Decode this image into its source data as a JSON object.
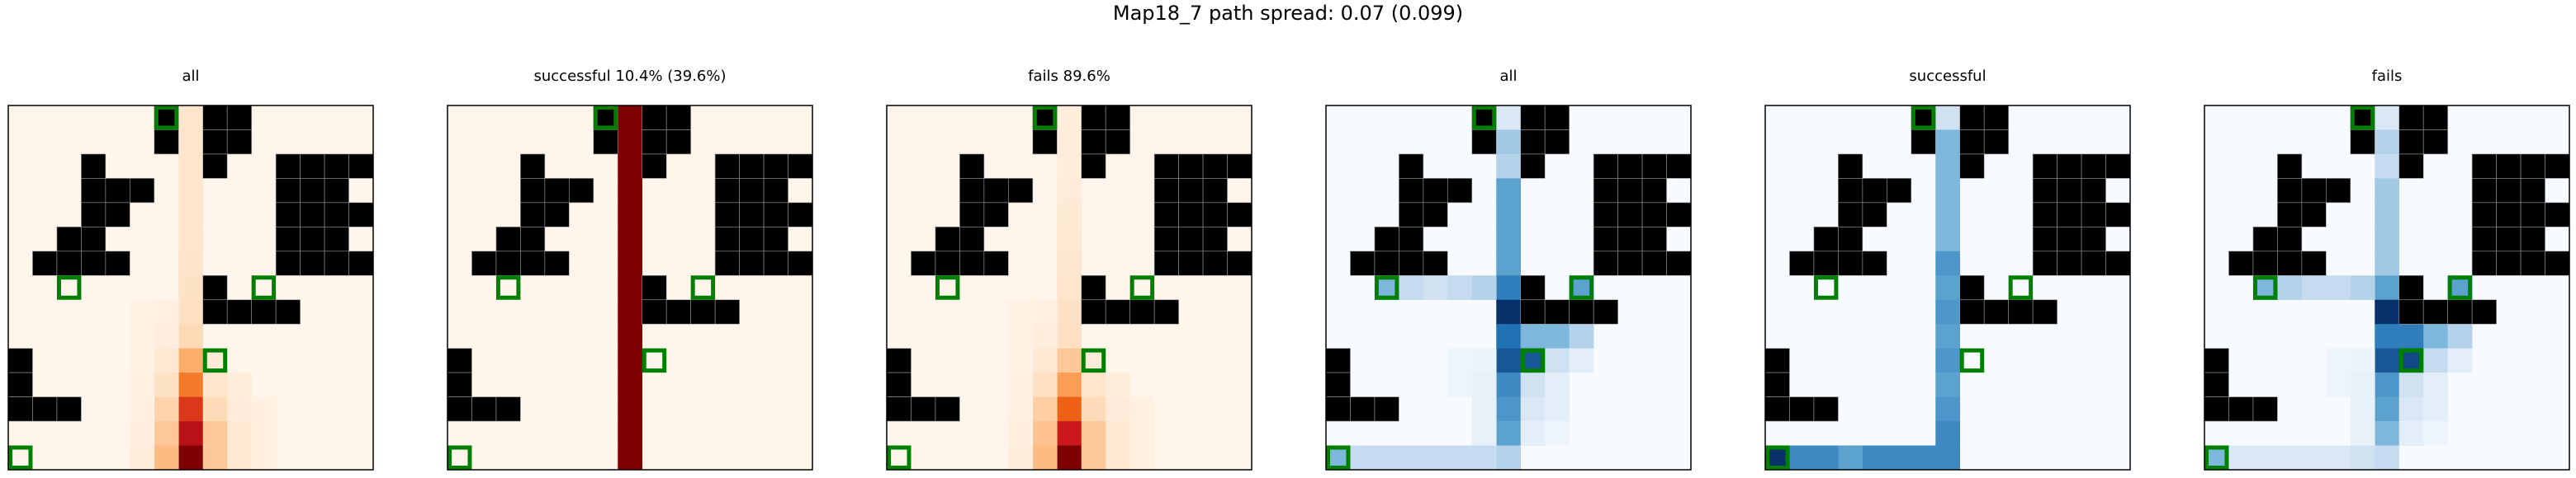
{
  "title": "Map18_7 path spread: 0.07 (0.099)",
  "chart_data": {
    "type": "heatmap",
    "grid_size": 15,
    "wall_color": "#000000",
    "marker_color": "#008000",
    "walls": [
      [
        0,
        6
      ],
      [
        0,
        8
      ],
      [
        0,
        9
      ],
      [
        1,
        6
      ],
      [
        1,
        8
      ],
      [
        1,
        9
      ],
      [
        2,
        3
      ],
      [
        2,
        8
      ],
      [
        2,
        11
      ],
      [
        2,
        12
      ],
      [
        2,
        13
      ],
      [
        2,
        14
      ],
      [
        3,
        3
      ],
      [
        3,
        4
      ],
      [
        3,
        5
      ],
      [
        3,
        11
      ],
      [
        3,
        12
      ],
      [
        3,
        13
      ],
      [
        4,
        3
      ],
      [
        4,
        4
      ],
      [
        4,
        11
      ],
      [
        4,
        12
      ],
      [
        4,
        13
      ],
      [
        4,
        14
      ],
      [
        5,
        2
      ],
      [
        5,
        3
      ],
      [
        5,
        11
      ],
      [
        5,
        12
      ],
      [
        5,
        13
      ],
      [
        6,
        1
      ],
      [
        6,
        2
      ],
      [
        6,
        3
      ],
      [
        6,
        4
      ],
      [
        6,
        11
      ],
      [
        6,
        12
      ],
      [
        6,
        13
      ],
      [
        6,
        14
      ],
      [
        7,
        8
      ],
      [
        8,
        8
      ],
      [
        8,
        9
      ],
      [
        8,
        10
      ],
      [
        8,
        11
      ],
      [
        10,
        0
      ],
      [
        11,
        0
      ],
      [
        12,
        0
      ],
      [
        12,
        1
      ],
      [
        12,
        2
      ]
    ],
    "markers": [
      [
        0,
        6
      ],
      [
        7,
        2
      ],
      [
        7,
        10
      ],
      [
        10,
        8
      ],
      [
        14,
        0
      ]
    ],
    "panels": [
      {
        "title": "all",
        "cmap": "orange",
        "cells": [
          [
            0,
            7,
            0.15
          ],
          [
            1,
            7,
            0.15
          ],
          [
            2,
            7,
            0.15
          ],
          [
            3,
            7,
            0.15
          ],
          [
            4,
            7,
            0.15
          ],
          [
            5,
            7,
            0.15
          ],
          [
            6,
            7,
            0.16
          ],
          [
            7,
            7,
            0.18
          ],
          [
            8,
            7,
            0.2
          ],
          [
            9,
            7,
            0.23
          ],
          [
            10,
            7,
            0.4
          ],
          [
            11,
            7,
            0.55
          ],
          [
            12,
            7,
            0.72
          ],
          [
            13,
            7,
            0.85
          ],
          [
            14,
            7,
            1.0
          ],
          [
            8,
            6,
            0.05
          ],
          [
            9,
            6,
            0.07
          ],
          [
            10,
            6,
            0.12
          ],
          [
            11,
            6,
            0.18
          ],
          [
            12,
            6,
            0.25
          ],
          [
            13,
            6,
            0.3
          ],
          [
            14,
            6,
            0.35
          ],
          [
            10,
            8,
            0.1
          ],
          [
            11,
            8,
            0.15
          ],
          [
            12,
            8,
            0.22
          ],
          [
            13,
            8,
            0.3
          ],
          [
            14,
            8,
            0.3
          ],
          [
            11,
            9,
            0.08
          ],
          [
            12,
            9,
            0.1
          ],
          [
            13,
            9,
            0.12
          ],
          [
            14,
            9,
            0.12
          ],
          [
            12,
            10,
            0.05
          ],
          [
            13,
            10,
            0.05
          ],
          [
            14,
            10,
            0.05
          ],
          [
            8,
            5,
            0.03
          ],
          [
            9,
            5,
            0.04
          ],
          [
            10,
            5,
            0.04
          ],
          [
            11,
            5,
            0.05
          ],
          [
            12,
            5,
            0.05
          ],
          [
            13,
            5,
            0.06
          ],
          [
            14,
            5,
            0.08
          ]
        ]
      },
      {
        "title": "successful 10.4% (39.6%)",
        "cmap": "orange",
        "cells": [
          [
            0,
            7,
            1.0
          ],
          [
            1,
            7,
            1.0
          ],
          [
            2,
            7,
            1.0
          ],
          [
            3,
            7,
            1.0
          ],
          [
            4,
            7,
            1.0
          ],
          [
            5,
            7,
            1.0
          ],
          [
            6,
            7,
            1.0
          ],
          [
            7,
            7,
            1.0
          ],
          [
            8,
            7,
            1.0
          ],
          [
            9,
            7,
            1.0
          ],
          [
            10,
            7,
            1.0
          ],
          [
            11,
            7,
            1.0
          ],
          [
            12,
            7,
            1.0
          ],
          [
            13,
            7,
            1.0
          ],
          [
            14,
            7,
            1.0
          ]
        ]
      },
      {
        "title": "fails 89.6%",
        "cmap": "orange",
        "cells": [
          [
            0,
            7,
            0.08
          ],
          [
            1,
            7,
            0.08
          ],
          [
            2,
            7,
            0.09
          ],
          [
            3,
            7,
            0.1
          ],
          [
            4,
            7,
            0.11
          ],
          [
            5,
            7,
            0.12
          ],
          [
            6,
            7,
            0.13
          ],
          [
            7,
            7,
            0.15
          ],
          [
            8,
            7,
            0.18
          ],
          [
            9,
            7,
            0.2
          ],
          [
            10,
            7,
            0.3
          ],
          [
            11,
            7,
            0.45
          ],
          [
            12,
            7,
            0.62
          ],
          [
            13,
            7,
            0.8
          ],
          [
            14,
            7,
            1.0
          ],
          [
            8,
            6,
            0.05
          ],
          [
            9,
            6,
            0.07
          ],
          [
            10,
            6,
            0.12
          ],
          [
            11,
            6,
            0.2
          ],
          [
            12,
            6,
            0.27
          ],
          [
            13,
            6,
            0.32
          ],
          [
            14,
            6,
            0.35
          ],
          [
            10,
            8,
            0.1
          ],
          [
            11,
            8,
            0.15
          ],
          [
            12,
            8,
            0.22
          ],
          [
            13,
            8,
            0.3
          ],
          [
            14,
            8,
            0.3
          ],
          [
            11,
            9,
            0.08
          ],
          [
            12,
            9,
            0.1
          ],
          [
            13,
            9,
            0.12
          ],
          [
            14,
            9,
            0.12
          ],
          [
            12,
            10,
            0.05
          ],
          [
            13,
            10,
            0.05
          ],
          [
            14,
            10,
            0.05
          ],
          [
            8,
            5,
            0.03
          ],
          [
            9,
            5,
            0.04
          ],
          [
            10,
            5,
            0.04
          ],
          [
            11,
            5,
            0.05
          ],
          [
            12,
            5,
            0.05
          ],
          [
            13,
            5,
            0.06
          ],
          [
            14,
            5,
            0.08
          ]
        ]
      },
      {
        "title": "all",
        "cmap": "blue",
        "cells": [
          [
            0,
            6,
            0.45
          ],
          [
            0,
            7,
            0.15
          ],
          [
            1,
            7,
            0.35
          ],
          [
            2,
            7,
            0.3
          ],
          [
            3,
            7,
            0.55
          ],
          [
            4,
            7,
            0.55
          ],
          [
            5,
            7,
            0.55
          ],
          [
            6,
            7,
            0.55
          ],
          [
            7,
            7,
            0.7
          ],
          [
            8,
            7,
            1.0
          ],
          [
            9,
            7,
            0.75
          ],
          [
            10,
            7,
            0.85
          ],
          [
            11,
            7,
            0.65
          ],
          [
            12,
            7,
            0.6
          ],
          [
            13,
            7,
            0.55
          ],
          [
            14,
            7,
            0.3
          ],
          [
            7,
            2,
            0.45
          ],
          [
            7,
            3,
            0.25
          ],
          [
            7,
            4,
            0.2
          ],
          [
            7,
            5,
            0.25
          ],
          [
            7,
            6,
            0.3
          ],
          [
            7,
            10,
            0.55
          ],
          [
            9,
            8,
            0.45
          ],
          [
            9,
            9,
            0.45
          ],
          [
            9,
            10,
            0.3
          ],
          [
            10,
            8,
            0.85
          ],
          [
            10,
            9,
            0.2
          ],
          [
            10,
            10,
            0.1
          ],
          [
            11,
            8,
            0.2
          ],
          [
            11,
            9,
            0.1
          ],
          [
            12,
            8,
            0.15
          ],
          [
            12,
            9,
            0.1
          ],
          [
            13,
            8,
            0.1
          ],
          [
            13,
            9,
            0.05
          ],
          [
            10,
            5,
            0.05
          ],
          [
            10,
            6,
            0.06
          ],
          [
            11,
            5,
            0.05
          ],
          [
            11,
            6,
            0.08
          ],
          [
            12,
            6,
            0.08
          ],
          [
            13,
            6,
            0.08
          ],
          [
            14,
            0,
            0.45
          ],
          [
            14,
            1,
            0.25
          ],
          [
            14,
            2,
            0.25
          ],
          [
            14,
            3,
            0.25
          ],
          [
            14,
            4,
            0.25
          ],
          [
            14,
            5,
            0.25
          ],
          [
            14,
            6,
            0.25
          ]
        ]
      },
      {
        "title": "successful",
        "cmap": "blue",
        "cells": [
          [
            0,
            7,
            0.2
          ],
          [
            1,
            7,
            0.45
          ],
          [
            2,
            7,
            0.45
          ],
          [
            3,
            7,
            0.45
          ],
          [
            4,
            7,
            0.45
          ],
          [
            5,
            7,
            0.45
          ],
          [
            6,
            7,
            0.6
          ],
          [
            7,
            7,
            0.55
          ],
          [
            8,
            7,
            0.6
          ],
          [
            9,
            7,
            0.55
          ],
          [
            10,
            7,
            0.6
          ],
          [
            11,
            7,
            0.55
          ],
          [
            12,
            7,
            0.6
          ],
          [
            13,
            7,
            0.65
          ],
          [
            14,
            7,
            0.65
          ],
          [
            14,
            0,
            1.0
          ],
          [
            14,
            1,
            0.65
          ],
          [
            14,
            2,
            0.65
          ],
          [
            14,
            3,
            0.55
          ],
          [
            14,
            4,
            0.65
          ],
          [
            14,
            5,
            0.65
          ],
          [
            14,
            6,
            0.65
          ]
        ]
      },
      {
        "title": "fails",
        "cmap": "blue",
        "cells": [
          [
            0,
            6,
            0.45
          ],
          [
            0,
            7,
            0.15
          ],
          [
            1,
            7,
            0.3
          ],
          [
            2,
            7,
            0.25
          ],
          [
            3,
            7,
            0.35
          ],
          [
            4,
            7,
            0.35
          ],
          [
            5,
            7,
            0.35
          ],
          [
            6,
            7,
            0.35
          ],
          [
            7,
            7,
            0.55
          ],
          [
            8,
            7,
            1.0
          ],
          [
            9,
            7,
            0.7
          ],
          [
            10,
            7,
            0.85
          ],
          [
            11,
            7,
            0.6
          ],
          [
            12,
            7,
            0.55
          ],
          [
            13,
            7,
            0.45
          ],
          [
            14,
            7,
            0.25
          ],
          [
            7,
            2,
            0.45
          ],
          [
            7,
            3,
            0.3
          ],
          [
            7,
            4,
            0.25
          ],
          [
            7,
            5,
            0.25
          ],
          [
            7,
            6,
            0.3
          ],
          [
            7,
            10,
            0.55
          ],
          [
            8,
            8,
            0.2
          ],
          [
            9,
            8,
            0.7
          ],
          [
            9,
            9,
            0.45
          ],
          [
            9,
            10,
            0.3
          ],
          [
            10,
            8,
            0.9
          ],
          [
            10,
            9,
            0.25
          ],
          [
            10,
            10,
            0.1
          ],
          [
            11,
            8,
            0.2
          ],
          [
            11,
            9,
            0.1
          ],
          [
            12,
            8,
            0.15
          ],
          [
            12,
            9,
            0.1
          ],
          [
            13,
            8,
            0.1
          ],
          [
            13,
            9,
            0.05
          ],
          [
            10,
            5,
            0.05
          ],
          [
            10,
            6,
            0.06
          ],
          [
            11,
            5,
            0.05
          ],
          [
            11,
            6,
            0.08
          ],
          [
            12,
            6,
            0.08
          ],
          [
            13,
            6,
            0.08
          ],
          [
            14,
            0,
            0.45
          ],
          [
            14,
            1,
            0.15
          ],
          [
            14,
            2,
            0.15
          ],
          [
            14,
            3,
            0.15
          ],
          [
            14,
            4,
            0.15
          ],
          [
            14,
            5,
            0.15
          ],
          [
            14,
            6,
            0.2
          ]
        ]
      }
    ]
  }
}
